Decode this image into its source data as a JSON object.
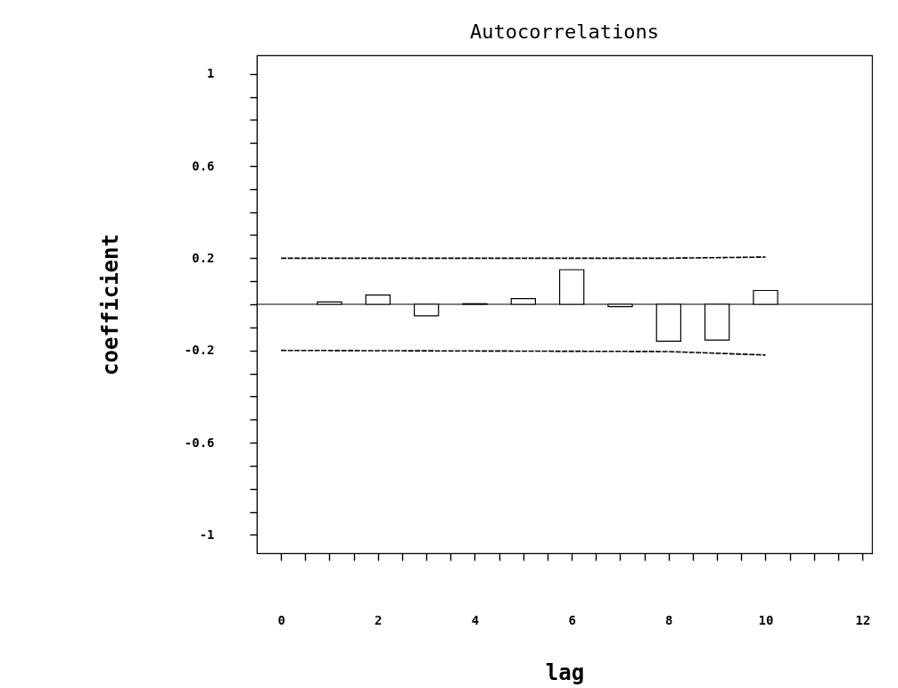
{
  "chart_data": {
    "type": "bar",
    "title": "Autocorrelations",
    "xlabel": "lag",
    "ylabel": "coefficient",
    "xlim": [
      -0.5,
      12.2
    ],
    "ylim": [
      -1.08,
      1.08
    ],
    "xticks": [
      0,
      {
        "value": 0.5,
        "label": null
      },
      {
        "value": 1,
        "label": null
      },
      {
        "value": 1.5,
        "label": null
      },
      2,
      {
        "value": 2.5,
        "label": null
      },
      {
        "value": 3,
        "label": null
      },
      {
        "value": 3.5,
        "label": null
      },
      4,
      {
        "value": 4.5,
        "label": null
      },
      {
        "value": 5,
        "label": null
      },
      {
        "value": 5.5,
        "label": null
      },
      6,
      {
        "value": 6.5,
        "label": null
      },
      {
        "value": 7,
        "label": null
      },
      {
        "value": 7.5,
        "label": null
      },
      8,
      {
        "value": 8.5,
        "label": null
      },
      {
        "value": 9,
        "label": null
      },
      {
        "value": 9.5,
        "label": null
      },
      10,
      {
        "value": 10.5,
        "label": null
      },
      {
        "value": 11,
        "label": null
      },
      {
        "value": 11.5,
        "label": null
      },
      12
    ],
    "yticks": [
      -1,
      {
        "value": -0.9,
        "label": null
      },
      {
        "value": -0.8,
        "label": null
      },
      {
        "value": -0.7,
        "label": null
      },
      -0.6,
      {
        "value": -0.5,
        "label": null
      },
      {
        "value": -0.4,
        "label": null
      },
      {
        "value": -0.3,
        "label": null
      },
      -0.2,
      {
        "value": -0.1,
        "label": null
      },
      {
        "value": 0,
        "label": null
      },
      {
        "value": 0.1,
        "label": null
      },
      0.2,
      {
        "value": 0.3,
        "label": null
      },
      {
        "value": 0.4,
        "label": null
      },
      {
        "value": 0.5,
        "label": null
      },
      0.6,
      {
        "value": 0.7,
        "label": null
      },
      {
        "value": 0.8,
        "label": null
      },
      {
        "value": 0.9,
        "label": null
      },
      1
    ],
    "grid": false,
    "ref_lines": [
      {
        "axis": "y",
        "value": 0,
        "color": "#000000"
      }
    ],
    "series": [
      {
        "color": "#ffffff",
        "x": [
          1,
          2,
          3,
          4,
          5,
          6,
          7,
          8,
          9,
          10
        ],
        "values": [
          0.01,
          0.04,
          -0.05,
          0.003,
          0.025,
          0.15,
          -0.01,
          -0.16,
          -0.155,
          0.06
        ]
      },
      {
        "type": "line",
        "color": "#000000",
        "line_style": "dashed",
        "x": [
          0,
          8,
          10
        ],
        "values": [
          0.2,
          0.2,
          0.205
        ]
      },
      {
        "type": "line",
        "color": "#000000",
        "line_style": "dashed",
        "x": [
          0,
          8,
          10
        ],
        "values": [
          -0.2,
          -0.205,
          -0.22
        ]
      }
    ]
  }
}
